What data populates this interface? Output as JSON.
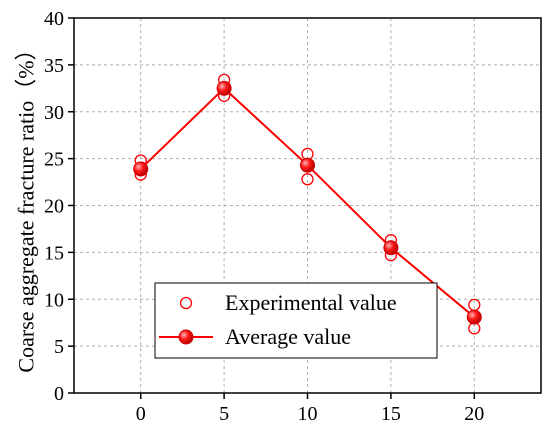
{
  "chart_data": {
    "type": "line",
    "title": "",
    "xlabel": "",
    "ylabel": "Coarse aggregate fracture ratio（%）",
    "x_ticks": [
      "0",
      "5",
      "10",
      "15",
      "20"
    ],
    "y_ticks": [
      "0",
      "5",
      "10",
      "15",
      "20",
      "25",
      "30",
      "35",
      "40"
    ],
    "xlim": [
      -4,
      24
    ],
    "ylim": [
      0,
      40
    ],
    "grid": true,
    "legend_position": "lower-right",
    "series": [
      {
        "name": "Experimental value",
        "kind": "scatter",
        "marker": "open-circle",
        "color": "#ff0000",
        "points": [
          {
            "x": 0,
            "y": 24.8
          },
          {
            "x": 0,
            "y": 23.3
          },
          {
            "x": 0,
            "y": 23.9
          },
          {
            "x": 5,
            "y": 33.4
          },
          {
            "x": 5,
            "y": 31.7
          },
          {
            "x": 5,
            "y": 32.5
          },
          {
            "x": 10,
            "y": 25.5
          },
          {
            "x": 10,
            "y": 22.8
          },
          {
            "x": 10,
            "y": 24.3
          },
          {
            "x": 15,
            "y": 16.3
          },
          {
            "x": 15,
            "y": 14.7
          },
          {
            "x": 15,
            "y": 15.5
          },
          {
            "x": 20,
            "y": 9.4
          },
          {
            "x": 20,
            "y": 6.9
          },
          {
            "x": 20,
            "y": 8.1
          }
        ]
      },
      {
        "name": "Average value",
        "kind": "line",
        "marker": "filled-circle",
        "color": "#ff0000",
        "points": [
          {
            "x": 0,
            "y": 23.9
          },
          {
            "x": 5,
            "y": 32.5
          },
          {
            "x": 10,
            "y": 24.3
          },
          {
            "x": 15,
            "y": 15.5
          },
          {
            "x": 20,
            "y": 8.1
          }
        ]
      }
    ]
  }
}
